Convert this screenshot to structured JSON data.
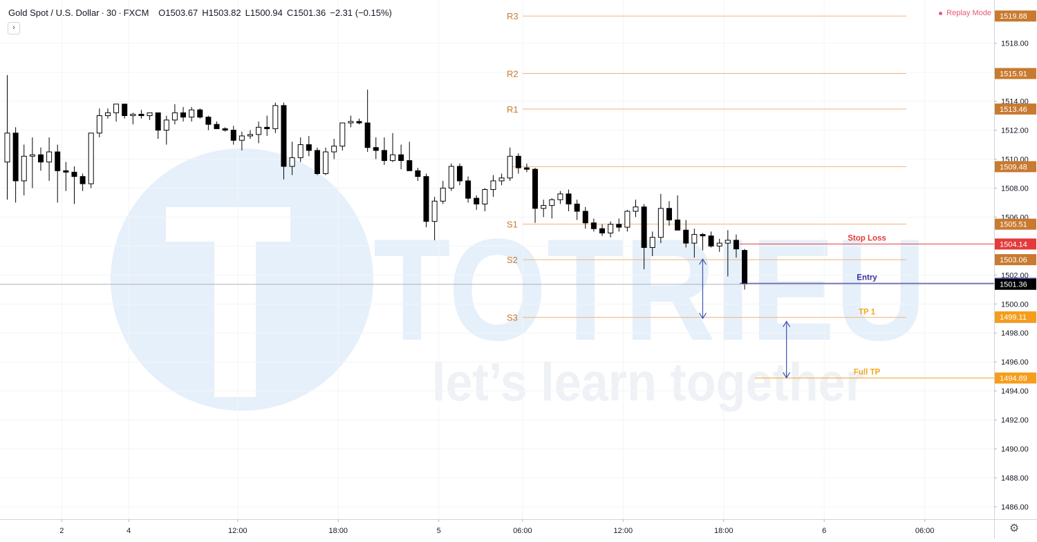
{
  "header": {
    "symbol": "Gold Spot / U.S. Dollar",
    "interval": "30",
    "source": "FXCM",
    "open_label": "O1503.67",
    "high_label": "H1503.82",
    "low_label": "L1500.94",
    "close_label": "C1501.36",
    "change_label": "−2.31 (−0.15%)"
  },
  "collapse_symbol": "›",
  "replay_mode_label": "Replay Mode",
  "colors": {
    "pivot": "#f0b27a",
    "pivot_text": "#c67a2e",
    "stop": "#e33b3b",
    "entry": "#3c3399",
    "tp": "#f5a623",
    "arrow": "#3f51b5",
    "watermark": "#e6f0fa",
    "candle_up": "#ffffff",
    "candle_down": "#000000"
  },
  "watermark": {
    "brand": "TOTRIEU",
    "slogan": "let’s learn together"
  },
  "chart_data": {
    "type": "candlestick",
    "title": "Gold Spot / U.S. Dollar",
    "y_range": [
      1485,
      1521
    ],
    "y_ticks": [
      "1518.00",
      "1516.00",
      "1514.00",
      "1512.00",
      "1510.00",
      "1508.00",
      "1506.00",
      "1504.00",
      "1502.00",
      "1500.00",
      "1498.00",
      "1496.00",
      "1494.00",
      "1492.00",
      "1490.00",
      "1488.00",
      "1486.00"
    ],
    "x_ticks": [
      {
        "label": "2",
        "index": 6.5
      },
      {
        "label": "4",
        "index": 14.5
      },
      {
        "label": "12:00",
        "index": 27.5
      },
      {
        "label": "18:00",
        "index": 39.5
      },
      {
        "label": "5",
        "index": 51.5
      },
      {
        "label": "06:00",
        "index": 61.5
      },
      {
        "label": "12:00",
        "index": 73.5
      },
      {
        "label": "18:00",
        "index": 85.5
      },
      {
        "label": "6",
        "index": 97.5
      },
      {
        "label": "06:00",
        "index": 109.5
      }
    ],
    "candles": [
      [
        1509.8,
        1515.8,
        1507.2,
        1511.8
      ],
      [
        1511.8,
        1512.2,
        1507.0,
        1508.5
      ],
      [
        1508.5,
        1511.0,
        1507.5,
        1510.2
      ],
      [
        1510.2,
        1511.5,
        1508.0,
        1510.3
      ],
      [
        1510.3,
        1510.8,
        1509.2,
        1509.8
      ],
      [
        1509.8,
        1511.5,
        1508.5,
        1510.5
      ],
      [
        1510.5,
        1511.0,
        1507.0,
        1509.2
      ],
      [
        1509.2,
        1509.8,
        1507.8,
        1509.1
      ],
      [
        1509.1,
        1509.5,
        1506.9,
        1508.8
      ],
      [
        1508.8,
        1509.0,
        1507.8,
        1508.3
      ],
      [
        1508.3,
        1511.8,
        1508.0,
        1511.8
      ],
      [
        1511.8,
        1513.5,
        1511.5,
        1513.0
      ],
      [
        1513.0,
        1513.5,
        1512.8,
        1513.2
      ],
      [
        1513.2,
        1513.8,
        1512.6,
        1513.8
      ],
      [
        1513.8,
        1513.8,
        1512.8,
        1513.0
      ],
      [
        1513.0,
        1513.2,
        1512.4,
        1513.1
      ],
      [
        1513.1,
        1513.4,
        1512.8,
        1513.0
      ],
      [
        1513.0,
        1513.2,
        1512.7,
        1513.2
      ],
      [
        1513.2,
        1513.2,
        1511.4,
        1512.0
      ],
      [
        1512.0,
        1513.0,
        1511.0,
        1512.7
      ],
      [
        1512.7,
        1513.8,
        1512.4,
        1513.2
      ],
      [
        1513.2,
        1513.6,
        1512.6,
        1512.9
      ],
      [
        1512.9,
        1513.6,
        1512.6,
        1513.4
      ],
      [
        1513.4,
        1513.5,
        1512.8,
        1512.9
      ],
      [
        1512.9,
        1513.0,
        1512.0,
        1512.4
      ],
      [
        1512.4,
        1512.6,
        1512.1,
        1512.1
      ],
      [
        1512.1,
        1512.2,
        1511.9,
        1512.0
      ],
      [
        1512.0,
        1512.3,
        1511.0,
        1511.3
      ],
      [
        1511.3,
        1511.9,
        1510.6,
        1511.6
      ],
      [
        1511.6,
        1512.0,
        1511.4,
        1511.7
      ],
      [
        1511.7,
        1512.6,
        1511.1,
        1512.2
      ],
      [
        1512.2,
        1513.0,
        1511.6,
        1512.1
      ],
      [
        1512.1,
        1513.9,
        1511.8,
        1513.7
      ],
      [
        1513.7,
        1513.9,
        1508.6,
        1509.5
      ],
      [
        1509.5,
        1511.2,
        1508.9,
        1510.1
      ],
      [
        1510.1,
        1511.5,
        1509.8,
        1511.0
      ],
      [
        1511.0,
        1511.6,
        1510.2,
        1510.6
      ],
      [
        1510.6,
        1510.8,
        1508.9,
        1509.0
      ],
      [
        1509.0,
        1510.8,
        1508.9,
        1510.5
      ],
      [
        1510.5,
        1511.4,
        1510.0,
        1510.9
      ],
      [
        1510.9,
        1512.5,
        1510.6,
        1512.5
      ],
      [
        1512.5,
        1513.0,
        1512.2,
        1512.6
      ],
      [
        1512.6,
        1512.8,
        1512.4,
        1512.5
      ],
      [
        1512.5,
        1514.8,
        1510.5,
        1510.8
      ],
      [
        1510.8,
        1511.5,
        1510.0,
        1510.6
      ],
      [
        1510.6,
        1511.5,
        1509.6,
        1509.9
      ],
      [
        1509.9,
        1511.8,
        1509.8,
        1510.3
      ],
      [
        1510.3,
        1511.0,
        1509.3,
        1509.9
      ],
      [
        1509.9,
        1511.2,
        1509.5,
        1509.2
      ],
      [
        1509.2,
        1509.4,
        1508.5,
        1508.8
      ],
      [
        1508.8,
        1509.0,
        1505.3,
        1505.7
      ],
      [
        1505.7,
        1507.4,
        1504.4,
        1507.1
      ],
      [
        1507.1,
        1508.5,
        1506.9,
        1508.0
      ],
      [
        1508.0,
        1509.7,
        1507.8,
        1509.5
      ],
      [
        1509.5,
        1509.7,
        1508.2,
        1508.5
      ],
      [
        1508.5,
        1508.8,
        1507.0,
        1507.3
      ],
      [
        1507.3,
        1507.5,
        1506.5,
        1506.9
      ],
      [
        1506.9,
        1508.0,
        1506.4,
        1507.9
      ],
      [
        1507.9,
        1508.9,
        1507.4,
        1508.5
      ],
      [
        1508.5,
        1509.0,
        1508.2,
        1508.7
      ],
      [
        1508.7,
        1510.8,
        1508.5,
        1510.2
      ],
      [
        1510.2,
        1510.4,
        1509.0,
        1509.4
      ],
      [
        1509.4,
        1509.7,
        1509.1,
        1509.3
      ],
      [
        1509.3,
        1509.4,
        1505.6,
        1506.6
      ],
      [
        1506.6,
        1507.2,
        1506.0,
        1506.8
      ],
      [
        1506.8,
        1507.3,
        1505.9,
        1507.2
      ],
      [
        1507.2,
        1507.8,
        1506.9,
        1507.6
      ],
      [
        1507.6,
        1507.9,
        1506.4,
        1506.9
      ],
      [
        1506.9,
        1507.2,
        1505.8,
        1506.4
      ],
      [
        1506.4,
        1506.7,
        1505.2,
        1505.6
      ],
      [
        1505.6,
        1505.9,
        1505.0,
        1505.2
      ],
      [
        1505.2,
        1505.5,
        1504.7,
        1504.9
      ],
      [
        1504.9,
        1505.7,
        1504.6,
        1505.5
      ],
      [
        1505.5,
        1505.9,
        1505.0,
        1505.3
      ],
      [
        1505.3,
        1506.5,
        1505.0,
        1506.4
      ],
      [
        1506.4,
        1507.2,
        1506.0,
        1506.7
      ],
      [
        1506.7,
        1506.9,
        1502.4,
        1503.9
      ],
      [
        1503.9,
        1505.0,
        1503.3,
        1504.6
      ],
      [
        1504.6,
        1507.6,
        1504.2,
        1506.6
      ],
      [
        1506.6,
        1507.1,
        1505.4,
        1505.8
      ],
      [
        1505.8,
        1507.5,
        1505.2,
        1505.1
      ],
      [
        1505.1,
        1505.8,
        1503.9,
        1504.2
      ],
      [
        1504.2,
        1505.2,
        1503.2,
        1504.8
      ],
      [
        1504.8,
        1504.9,
        1503.7,
        1504.7
      ],
      [
        1504.7,
        1505.0,
        1503.9,
        1504.0
      ],
      [
        1504.0,
        1504.5,
        1503.6,
        1504.2
      ],
      [
        1504.2,
        1505.1,
        1501.9,
        1504.4
      ],
      [
        1504.4,
        1504.8,
        1503.2,
        1503.8
      ],
      [
        1503.7,
        1503.8,
        1501.0,
        1501.4
      ]
    ],
    "levels": [
      {
        "label": "R3",
        "value": 1519.88,
        "price_label": "1519.88",
        "kind": "pivot"
      },
      {
        "label": "R2",
        "value": 1515.91,
        "price_label": "1515.91",
        "kind": "pivot"
      },
      {
        "label": "R1",
        "value": 1513.46,
        "price_label": "1513.46",
        "kind": "pivot"
      },
      {
        "label": "",
        "value": 1509.48,
        "price_label": "1509.48",
        "kind": "pivot"
      },
      {
        "label": "S1",
        "value": 1505.51,
        "price_label": "1505.51",
        "kind": "pivot"
      },
      {
        "label": "S2",
        "value": 1503.06,
        "price_label": "1503.06",
        "kind": "pivot"
      },
      {
        "label": "S3",
        "value": 1499.08,
        "price_label": "1499.08",
        "kind": "pivot"
      }
    ],
    "trade_lines": [
      {
        "label": "Stop Loss",
        "value": 1504.14,
        "price_label": "1504.14",
        "kind": "stop"
      },
      {
        "label": "Entry",
        "value": 1501.43,
        "price_label": "1501.43",
        "kind": "entry"
      },
      {
        "label": "TP 1",
        "value": 1499.11,
        "price_label": "1499.11",
        "kind": "tp"
      },
      {
        "label": "Full TP",
        "value": 1494.89,
        "price_label": "1494.89",
        "kind": "tp"
      }
    ],
    "last_price": {
      "value": 1501.36,
      "label": "1501.36"
    },
    "arrows": [
      {
        "index": 83,
        "from": 1503.1,
        "to": 1499.0
      },
      {
        "index": 93,
        "from": 1498.8,
        "to": 1494.9
      }
    ]
  }
}
